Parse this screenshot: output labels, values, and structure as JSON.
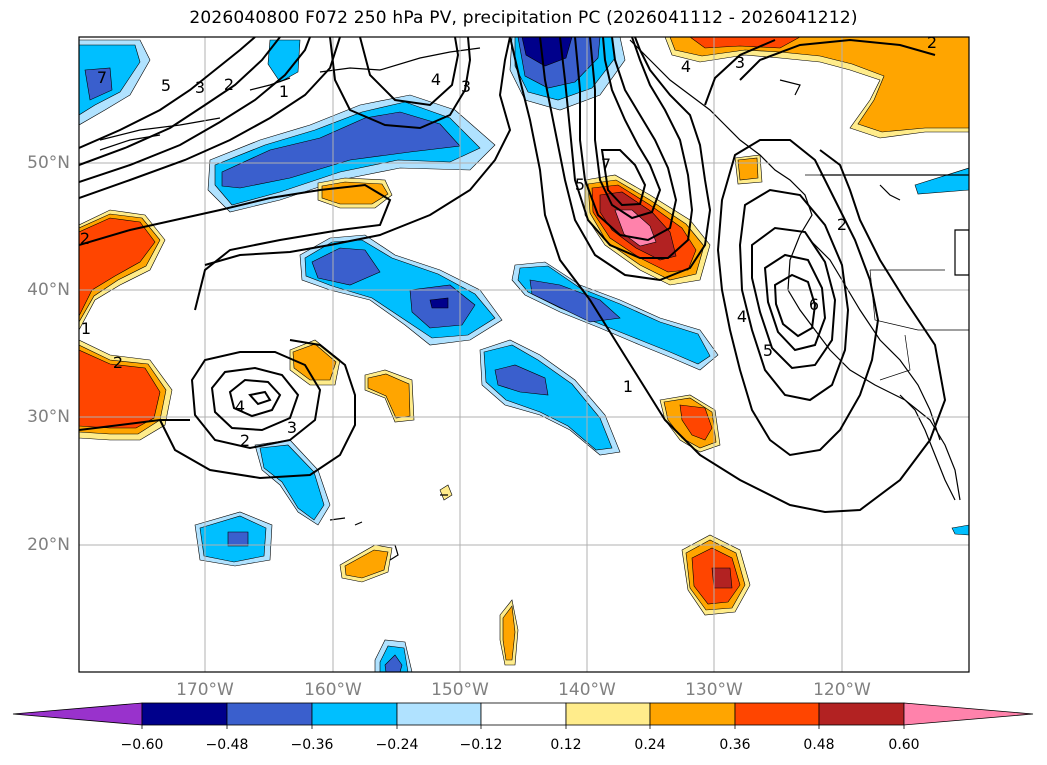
{
  "title": "2026040800 F072 250 hPa PV, precipitation PC (2026041112 - 2026041212)",
  "lat_labels": [
    "50°N",
    "40°N",
    "30°N",
    "20°N"
  ],
  "lon_labels": [
    "170°W",
    "160°W",
    "150°W",
    "140°W",
    "130°W",
    "120°W"
  ],
  "contour_labels": [
    "7",
    "5",
    "3",
    "2",
    "1",
    "4",
    "3",
    "2",
    "2",
    "4",
    "5",
    "6",
    "7",
    "5",
    "1",
    "4",
    "3",
    "2",
    "4",
    "3",
    "2",
    "1",
    "2"
  ],
  "colorbar": {
    "ticks": [
      "−0.60",
      "−0.48",
      "−0.36",
      "−0.24",
      "−0.12",
      "0.12",
      "0.24",
      "0.36",
      "0.48",
      "0.60"
    ],
    "colors": [
      "#9932cc",
      "#00008b",
      "#3a5fcd",
      "#00bfff",
      "#b0e2ff",
      "#ffffff",
      "#ffec8b",
      "#ffa500",
      "#ff4500",
      "#b22222",
      "#ff82ab"
    ]
  },
  "colors": {
    "pos_light": "#ffec8b",
    "pos_mid": "#ffa500",
    "pos_strong": "#ff4500",
    "pos_very": "#b22222",
    "pos_max": "#ff82ab",
    "neg_light": "#b0e2ff",
    "neg_mid": "#00bfff",
    "neg_strong": "#3a5fcd",
    "neg_very": "#00008b",
    "neg_max": "#9932cc"
  }
}
